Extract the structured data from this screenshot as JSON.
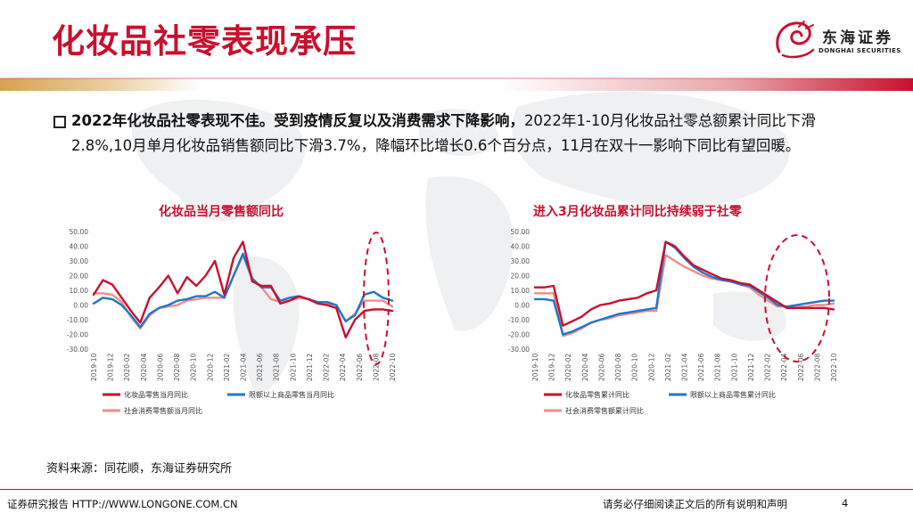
{
  "page": {
    "title": "化妆品社零表现承压",
    "logo_cn": "东海证券",
    "logo_en": "DONGHAI SECURITIES",
    "body_lead": "2022年化妆品社零表现不佳。受到疫情反复以及消费需求下降影响，",
    "body_rest": "2022年1-10月化妆品社零总额累计同比下滑2.8%,10月单月化妆品销售额同比下滑3.7%，降幅环比增长0.6个百分点，11月在双十一影响下同比有望回暖。",
    "source": "资料来源：同花顺，东海证券研究所",
    "footer_left": "证券研究报告 HTTP://WWW.LONGONE.COM.CN",
    "footer_right": "请务必仔细阅读正文后的所有说明和声明",
    "page_number": "4",
    "colors": {
      "brand_red": "#c8102e",
      "blue": "#1f77c8",
      "pink": "#f08c8c"
    }
  },
  "chart_data": [
    {
      "type": "line",
      "title": "化妆品当月零售额同比",
      "ylim": [
        -30,
        50
      ],
      "yticks": [
        "50.00",
        "40.00",
        "30.00",
        "20.00",
        "10.00",
        "0.00",
        "-10.00",
        "-20.00",
        "-30.00"
      ],
      "x_tick_labels": [
        "2019-10",
        "2019-12",
        "2020-02",
        "2020-04",
        "2020-06",
        "2020-08",
        "2020-10",
        "2020-12",
        "2021-02",
        "2021-04",
        "2021-06",
        "2021-08",
        "2021-10",
        "2021-12",
        "2022-02",
        "2022-04",
        "2022-06",
        "2022-08",
        "2022-10"
      ],
      "series": [
        {
          "name": "化妆品零售当月同比",
          "color": "#c8102e",
          "values": [
            7,
            17,
            14,
            5,
            -4,
            -12,
            5,
            12,
            20,
            8,
            19,
            13,
            20,
            30,
            7,
            32,
            43,
            16,
            13,
            13,
            1,
            3,
            6,
            4,
            1,
            0,
            -2,
            -22,
            -10,
            -4,
            -3,
            -3,
            -4
          ]
        },
        {
          "name": "限额以上商品零售当月同比",
          "color": "#1f77c8",
          "values": [
            1,
            5,
            4,
            0,
            -7,
            -15,
            -6,
            -2,
            0,
            3,
            4,
            6,
            6,
            9,
            5,
            20,
            35,
            18,
            12,
            12,
            3,
            5,
            6,
            4,
            2,
            2,
            0,
            -11,
            -7,
            7,
            9,
            5,
            3
          ]
        },
        {
          "name": "社会消费零售额当月同比",
          "color": "#f08c8c",
          "values": [
            8,
            8,
            7,
            2,
            -8,
            -16,
            -7,
            -2,
            -1,
            0,
            3,
            4,
            5,
            5,
            5,
            20,
            34,
            17,
            12,
            4,
            2,
            3,
            5,
            4,
            2,
            1,
            0,
            -11,
            -6,
            3,
            3,
            3,
            -1
          ]
        }
      ],
      "annotation": "dashed red ellipse highlighting 2022-06 to 2022-10"
    },
    {
      "type": "line",
      "title": "进入3月化妆品累计同比持续弱于社零",
      "ylim": [
        -30,
        50
      ],
      "yticks": [
        "50.00",
        "40.00",
        "30.00",
        "20.00",
        "10.00",
        "0.00",
        "-10.00",
        "-20.00",
        "-30.00"
      ],
      "x_tick_labels": [
        "2019-10",
        "2019-12",
        "2020-02",
        "2020-04",
        "2020-06",
        "2020-08",
        "2020-10",
        "2020-12",
        "2021-02",
        "2021-04",
        "2021-06",
        "2021-08",
        "2021-10",
        "2021-12",
        "2022-02",
        "2022-04",
        "2022-06",
        "2022-08",
        "2022-10"
      ],
      "series": [
        {
          "name": "化妆品零售累计同比",
          "color": "#c8102e",
          "values": [
            12,
            12,
            13,
            -14,
            -11,
            -8,
            -3,
            0,
            1,
            3,
            4,
            5,
            8,
            10,
            43,
            40,
            33,
            27,
            24,
            21,
            18,
            17,
            15,
            14,
            10,
            6,
            2,
            -2,
            -2,
            -2,
            -2,
            -2,
            -3
          ]
        },
        {
          "name": "限额以上商品零售累计同比",
          "color": "#1f77c8",
          "values": [
            4,
            4,
            3,
            -20,
            -18,
            -15,
            -12,
            -10,
            -8,
            -6,
            -5,
            -4,
            -3,
            -2,
            43,
            39,
            32,
            26,
            22,
            19,
            17,
            16,
            14,
            13,
            9,
            5,
            0,
            -1,
            0,
            1,
            2,
            3,
            3
          ]
        },
        {
          "name": "社会消费零售额累计同比",
          "color": "#f08c8c",
          "values": [
            8,
            8,
            8,
            -21,
            -19,
            -16,
            -12,
            -10,
            -9,
            -7,
            -6,
            -5,
            -4,
            -4,
            34,
            30,
            26,
            23,
            20,
            18,
            17,
            16,
            14,
            12,
            7,
            3,
            -1,
            -1,
            -1,
            -1,
            0,
            0,
            1
          ]
        }
      ],
      "annotation": "dashed red ellipse highlighting 2022-02 to 2022-10"
    }
  ]
}
